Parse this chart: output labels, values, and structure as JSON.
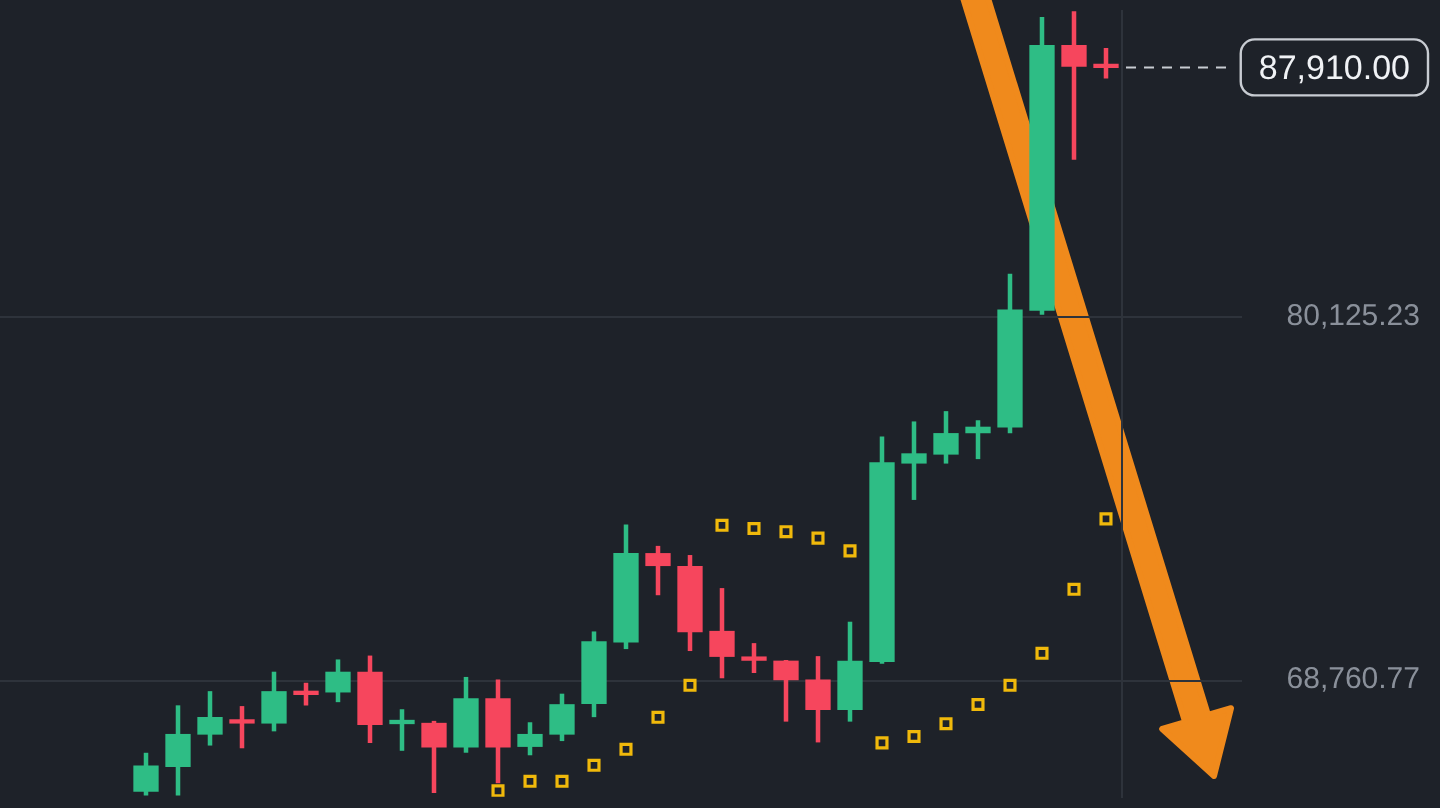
{
  "chart_data": {
    "type": "candlestick",
    "categories": [
      null,
      null,
      null,
      null,
      null,
      null,
      null,
      null,
      null,
      null,
      null,
      null,
      null,
      null,
      null,
      null,
      null,
      null,
      null,
      null,
      null,
      null,
      null,
      null,
      null,
      null,
      null,
      null,
      null,
      null,
      null
    ],
    "ylim": [
      65115,
      89666
    ],
    "yticks": [
      {
        "value": 68760.77,
        "label": "68,760.77"
      },
      {
        "value": 80125.23,
        "label": "80,125.23"
      }
    ],
    "grid": "y",
    "legend": false,
    "series": [
      {
        "type": "candlestick",
        "ohlc": [
          [
            65297,
            66470,
            65176,
            66069
          ],
          [
            66069,
            67953,
            65176,
            67059
          ],
          [
            67078,
            68396,
            66737,
            67588
          ],
          [
            67515,
            67929,
            66652,
            67424
          ],
          [
            67424,
            69004,
            67181,
            68396
          ],
          [
            68396,
            68658,
            67989,
            68317
          ],
          [
            68396,
            69387,
            68093,
            69004
          ],
          [
            69004,
            69508,
            66816,
            67381
          ],
          [
            67406,
            67831,
            66573,
            67467
          ],
          [
            67406,
            67467,
            65255,
            66676
          ],
          [
            66676,
            68840,
            66513,
            68172
          ],
          [
            68172,
            68761,
            65558,
            66676
          ],
          [
            66695,
            67424,
            66433,
            67059
          ],
          [
            67078,
            68317,
            66877,
            67989
          ],
          [
            68032,
            70262,
            67625,
            69958
          ],
          [
            69958,
            73604,
            69752,
            72711
          ],
          [
            72711,
            72936,
            71435,
            72346
          ],
          [
            72304,
            72650,
            69691,
            70280
          ],
          [
            70280,
            71617,
            68840,
            69508
          ],
          [
            69472,
            69897,
            69004,
            69387
          ],
          [
            69350,
            69370,
            67485,
            68779
          ],
          [
            68761,
            69490,
            66835,
            67849
          ],
          [
            67849,
            70566,
            67485,
            69350
          ],
          [
            69350,
            76357,
            69290,
            75549
          ],
          [
            75549,
            76825,
            74413,
            75829
          ],
          [
            75829,
            77147,
            75549,
            76461
          ],
          [
            76497,
            76862,
            75689,
            76661
          ],
          [
            76679,
            81444,
            76497,
            80325
          ],
          [
            80325,
            89465,
            80204,
            88590
          ],
          [
            88590,
            89650,
            85047,
            87950
          ],
          [
            87950,
            88493,
            87582,
            87910
          ]
        ],
        "colors": [
          "#2ebd85",
          "#2ebd85",
          "#2ebd85",
          "#f6465d",
          "#2ebd85",
          "#f6465d",
          "#2ebd85",
          "#f6465d",
          "#2ebd85",
          "#f6465d",
          "#2ebd85",
          "#f6465d",
          "#2ebd85",
          "#2ebd85",
          "#2ebd85",
          "#2ebd85",
          "#f6465d",
          "#f6465d",
          "#f6465d",
          "#f6465d",
          "#f6465d",
          "#f6465d",
          "#2ebd85",
          "#2ebd85",
          "#2ebd85",
          "#2ebd85",
          "#2ebd85",
          "#2ebd85",
          "#2ebd85",
          "#f6465d",
          "#f6465d"
        ]
      },
      {
        "type": "scatter",
        "marker": "square",
        "color": "#f0b90b",
        "values": [
          null,
          null,
          null,
          null,
          null,
          null,
          null,
          null,
          null,
          null,
          null,
          65300,
          65600,
          65600,
          66100,
          66600,
          67600,
          68600,
          73600,
          73500,
          73400,
          73200,
          72800,
          66800,
          67000,
          67400,
          68000,
          68600,
          69600,
          71600,
          73800
        ]
      }
    ],
    "ref_lines": [
      {
        "axis": "y",
        "value": 87910,
        "label": "87,910.00",
        "line_style": "dashed"
      }
    ]
  }
}
